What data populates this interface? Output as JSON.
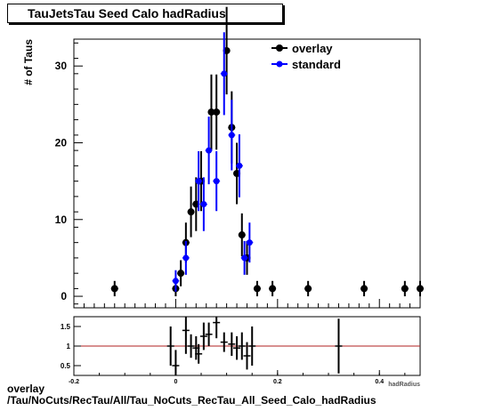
{
  "title": "TauJetsTau Seed Calo hadRadius",
  "footer": {
    "line1": "overlay",
    "line2": "/Tau/NoCuts/RecTau/All/Tau_NoCuts_RecTau_All_Seed_Calo_hadRadius"
  },
  "chart_data": [
    {
      "type": "scatter",
      "title": "TauJetsTau Seed Calo hadRadius",
      "xlabel": "hadRadius",
      "ylabel": "# of Taus",
      "xlim": [
        -0.2,
        0.48
      ],
      "ylim": [
        -1.5,
        33.5
      ],
      "yticks": [
        0,
        10,
        20,
        30
      ],
      "legend_position": "top-right",
      "series": [
        {
          "name": "overlay",
          "color": "#000000",
          "points": [
            {
              "x": -0.12,
              "y": 1,
              "err": 1
            },
            {
              "x": 0.0,
              "y": 1,
              "err": 1
            },
            {
              "x": 0.01,
              "y": 3,
              "err": 1.7
            },
            {
              "x": 0.02,
              "y": 7,
              "err": 2.6
            },
            {
              "x": 0.03,
              "y": 11,
              "err": 3.3
            },
            {
              "x": 0.04,
              "y": 12,
              "err": 3.5
            },
            {
              "x": 0.05,
              "y": 15,
              "err": 3.9
            },
            {
              "x": 0.07,
              "y": 24,
              "err": 4.9
            },
            {
              "x": 0.08,
              "y": 24,
              "err": 4.9
            },
            {
              "x": 0.1,
              "y": 32,
              "err": 5.7
            },
            {
              "x": 0.11,
              "y": 22,
              "err": 4.7
            },
            {
              "x": 0.12,
              "y": 16,
              "err": 4.0
            },
            {
              "x": 0.13,
              "y": 8,
              "err": 2.8
            },
            {
              "x": 0.14,
              "y": 5,
              "err": 2.2
            },
            {
              "x": 0.16,
              "y": 1,
              "err": 1
            },
            {
              "x": 0.19,
              "y": 1,
              "err": 1
            },
            {
              "x": 0.26,
              "y": 1,
              "err": 1
            },
            {
              "x": 0.37,
              "y": 1,
              "err": 1
            },
            {
              "x": 0.45,
              "y": 1,
              "err": 1
            },
            {
              "x": 0.48,
              "y": 1,
              "err": 1
            }
          ]
        },
        {
          "name": "standard",
          "color": "#0000ff",
          "points": [
            {
              "x": 0.0,
              "y": 2,
              "err": 1.4
            },
            {
              "x": 0.02,
              "y": 5,
              "err": 2.2
            },
            {
              "x": 0.045,
              "y": 15,
              "err": 3.9
            },
            {
              "x": 0.055,
              "y": 12,
              "err": 3.5
            },
            {
              "x": 0.065,
              "y": 19,
              "err": 4.4
            },
            {
              "x": 0.08,
              "y": 15,
              "err": 3.9
            },
            {
              "x": 0.095,
              "y": 29,
              "err": 5.4
            },
            {
              "x": 0.11,
              "y": 21,
              "err": 4.6
            },
            {
              "x": 0.125,
              "y": 17,
              "err": 4.1
            },
            {
              "x": 0.135,
              "y": 5,
              "err": 2.2
            },
            {
              "x": 0.145,
              "y": 7,
              "err": 2.6
            }
          ]
        }
      ]
    },
    {
      "type": "scatter",
      "xlim": [
        -0.2,
        0.48
      ],
      "ylim": [
        0.25,
        1.75
      ],
      "yticks": [
        0.5,
        1,
        1.5
      ],
      "xticks": [
        -0.2,
        0,
        0.2,
        0.4
      ],
      "reference_line": {
        "y": 1,
        "color": "#b22222"
      },
      "series": [
        {
          "color": "#000000",
          "points": [
            {
              "x": 0.0,
              "y": 0.5,
              "err": 0.4
            },
            {
              "x": -0.01,
              "y": 1.0,
              "err": 0.5
            },
            {
              "x": 0.02,
              "y": 1.4,
              "err": 0.6
            },
            {
              "x": 0.03,
              "y": 1.0,
              "err": 0.3
            },
            {
              "x": 0.04,
              "y": 0.95,
              "err": 0.3
            },
            {
              "x": 0.045,
              "y": 0.8,
              "err": 0.25
            },
            {
              "x": 0.055,
              "y": 1.25,
              "err": 0.35
            },
            {
              "x": 0.065,
              "y": 1.3,
              "err": 0.3
            },
            {
              "x": 0.08,
              "y": 1.6,
              "err": 0.4
            },
            {
              "x": 0.095,
              "y": 1.1,
              "err": 0.25
            },
            {
              "x": 0.11,
              "y": 1.05,
              "err": 0.3
            },
            {
              "x": 0.12,
              "y": 0.95,
              "err": 0.3
            },
            {
              "x": 0.13,
              "y": 1.0,
              "err": 0.35
            },
            {
              "x": 0.14,
              "y": 0.75,
              "err": 0.35
            },
            {
              "x": 0.15,
              "y": 1.0,
              "err": 0.5
            },
            {
              "x": 0.32,
              "y": 1.0,
              "err": 0.7
            }
          ]
        }
      ]
    }
  ]
}
